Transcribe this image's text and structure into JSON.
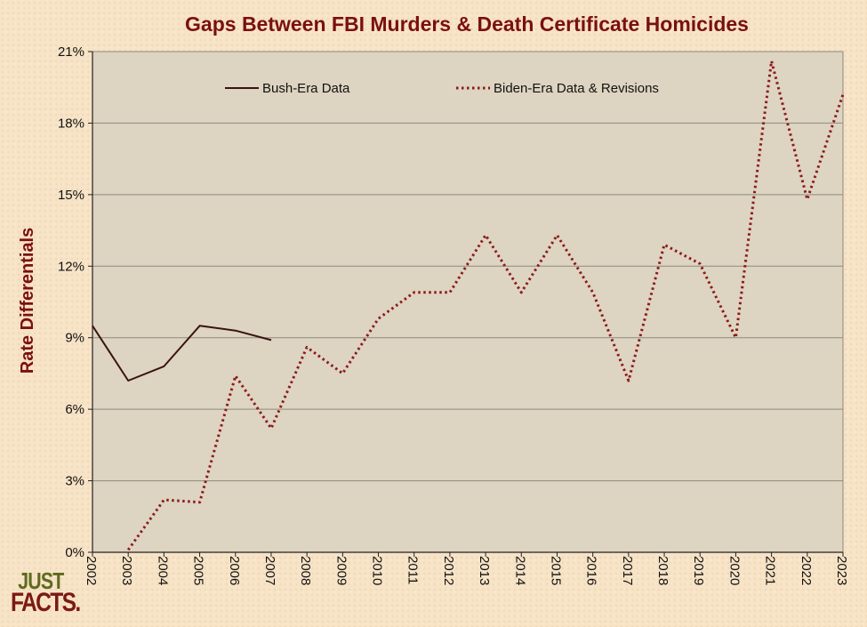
{
  "chart_data": {
    "type": "line",
    "title": "Gaps Between FBI Murders & Death Certificate Homicides",
    "xlabel": "",
    "ylabel": "Rate Differentials",
    "x": [
      "2002",
      "2003",
      "2004",
      "2005",
      "2006",
      "2007",
      "2008",
      "2009",
      "2010",
      "2011",
      "2012",
      "2013",
      "2014",
      "2015",
      "2016",
      "2017",
      "2018",
      "2019",
      "2020",
      "2021",
      "2022",
      "2023"
    ],
    "ylim": [
      0,
      21
    ],
    "y_ticks": [
      0,
      3,
      6,
      9,
      12,
      15,
      18,
      21
    ],
    "y_tick_labels": [
      "0%",
      "3%",
      "6%",
      "9%",
      "12%",
      "15%",
      "18%",
      "21%"
    ],
    "grid": true,
    "legend_position": "top inside",
    "series": [
      {
        "name": "Bush-Era Data",
        "style": "solid",
        "color": "#3a1410",
        "values": [
          9.5,
          7.2,
          7.8,
          9.5,
          9.3,
          8.9,
          null,
          null,
          null,
          null,
          null,
          null,
          null,
          null,
          null,
          null,
          null,
          null,
          null,
          null,
          null,
          null
        ]
      },
      {
        "name": "Biden-Era Data & Revisions",
        "style": "dotted",
        "color": "#8b1a1a",
        "values": [
          null,
          0.1,
          2.2,
          2.1,
          7.4,
          5.2,
          8.6,
          7.5,
          9.8,
          10.9,
          10.9,
          13.3,
          10.9,
          13.3,
          10.9,
          7.2,
          12.9,
          12.1,
          9.0,
          20.6,
          14.8,
          19.2
        ]
      }
    ]
  },
  "colors": {
    "background": "#f7e3c6",
    "plot_area": "#ddd4c1",
    "title": "#7a1010",
    "ylabel": "#7a1010",
    "gridline": "#8f8a80"
  },
  "logo": {
    "line1": "JUST",
    "line2": "FACTS."
  }
}
